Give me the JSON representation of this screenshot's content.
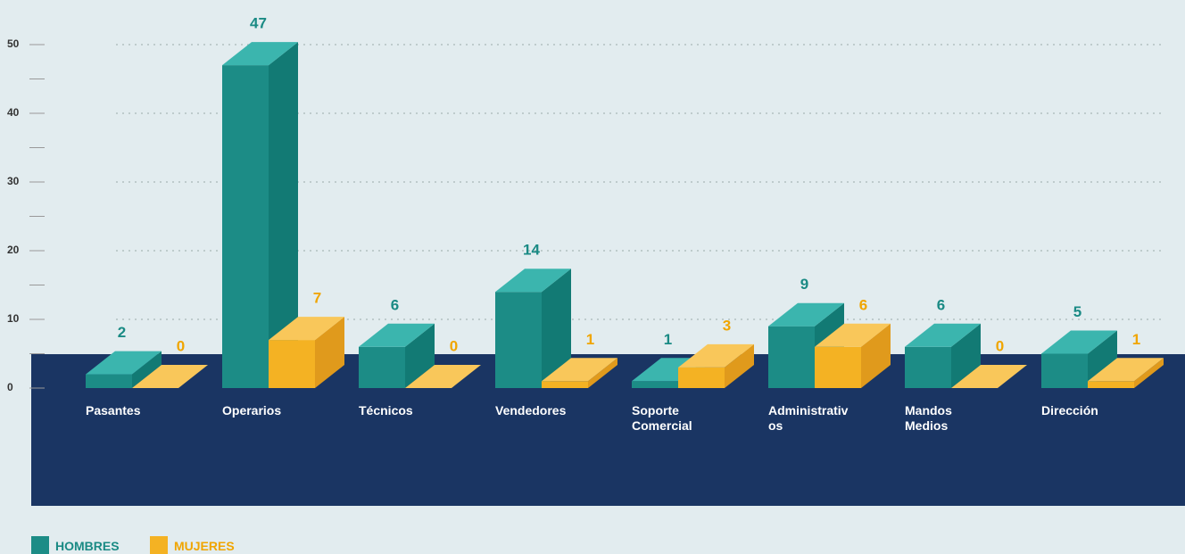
{
  "chart_data": {
    "type": "bar3d",
    "categories": [
      "Pasantes",
      "Operarios",
      "Técnicos",
      "Vendedores",
      "Soporte Comercial",
      "Administrativos",
      "Mandos Medios",
      "Dirección"
    ],
    "series": [
      {
        "name": "HOMBRES",
        "color": "#1c8c86",
        "values": [
          2,
          47,
          6,
          14,
          1,
          9,
          6,
          5
        ]
      },
      {
        "name": "MUJERES",
        "color": "#f4b223",
        "values": [
          0,
          7,
          0,
          1,
          3,
          6,
          0,
          1
        ]
      }
    ],
    "ylim": [
      0,
      50
    ],
    "yticks": [
      0,
      10,
      20,
      30,
      40,
      50
    ],
    "yminorticks": [
      5,
      15,
      25,
      35,
      45
    ],
    "grid": true
  }
}
